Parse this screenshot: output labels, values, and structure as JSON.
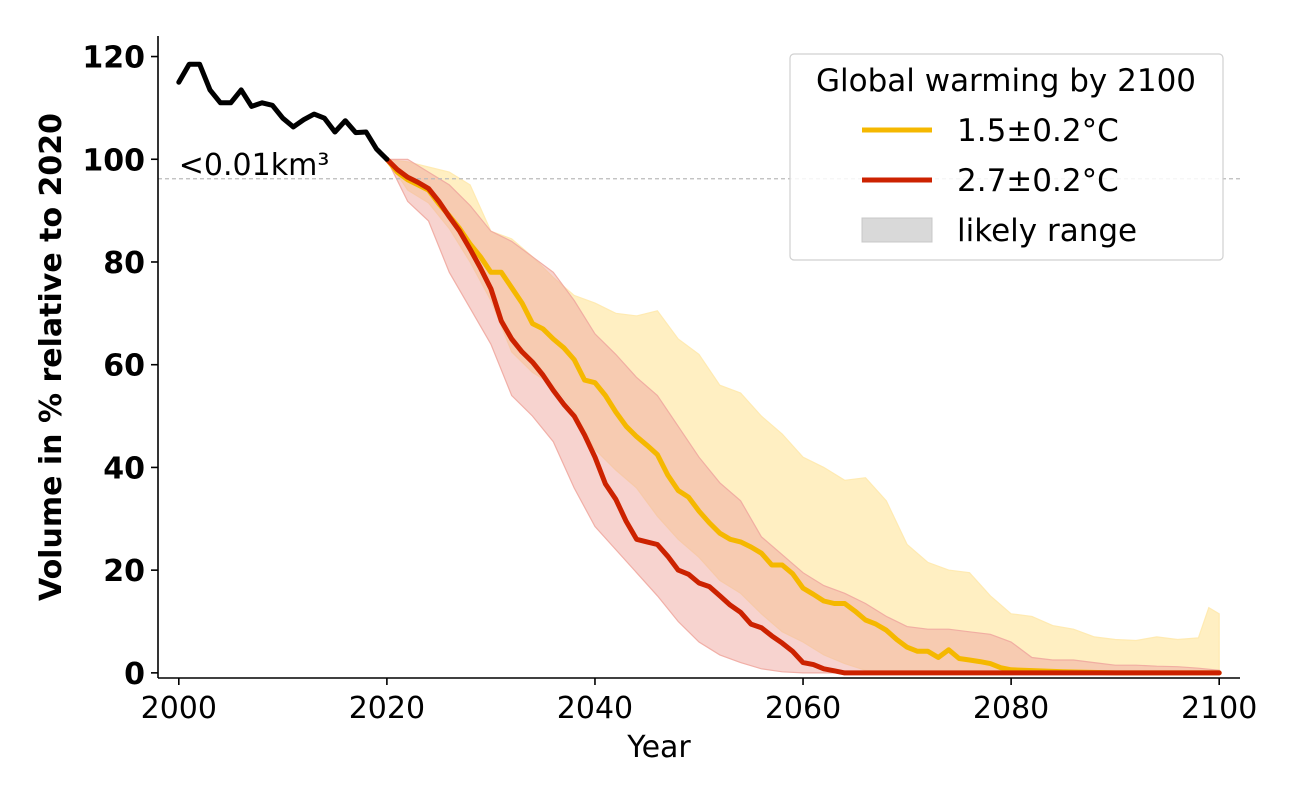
{
  "chart_data": {
    "type": "line",
    "xlabel": "Year",
    "ylabel": "Volume in % relative to 2020",
    "xlim": [
      1998,
      2102
    ],
    "ylim": [
      -1,
      124
    ],
    "x_ticks": [
      2000,
      2020,
      2040,
      2060,
      2080,
      2100
    ],
    "y_ticks": [
      0,
      20,
      40,
      60,
      80,
      100,
      120
    ],
    "grid": false,
    "legend": {
      "title": "Global warming by 2100",
      "placement": "top-right",
      "entries": [
        "1.5±0.2°C",
        "2.7±0.2°C",
        "likely range"
      ]
    },
    "reference_line": {
      "y": 96.2,
      "label": "<0.01km³",
      "style": "dashed",
      "color": "#bbbbbb"
    },
    "colors": {
      "historical": "#000000",
      "low": "#f5b800",
      "high": "#cc2200",
      "low_band": "#ffe9ad",
      "high_band": "#f0a8a0",
      "range_swatch": "#d9d9d9"
    },
    "series": [
      {
        "key": "historical",
        "x": [
          2000,
          2001,
          2002,
          2003,
          2004,
          2005,
          2006,
          2007,
          2008,
          2009,
          2010,
          2011,
          2012,
          2013,
          2014,
          2015,
          2016,
          2017,
          2018,
          2019,
          2020
        ],
        "values": [
          115,
          118.5,
          118.5,
          113.5,
          111,
          111,
          113.5,
          110.3,
          111,
          110.5,
          108,
          106.3,
          107.7,
          108.8,
          108,
          105.3,
          107.5,
          105.2,
          105.3,
          102,
          100
        ]
      },
      {
        "key": "low",
        "name": "1.5±0.2°C",
        "x": [
          2020,
          2021,
          2022,
          2023,
          2024,
          2025,
          2026,
          2027,
          2028,
          2029,
          2030,
          2031,
          2032,
          2033,
          2034,
          2035,
          2036,
          2037,
          2038,
          2039,
          2040,
          2041,
          2042,
          2043,
          2044,
          2045,
          2046,
          2047,
          2048,
          2049,
          2050,
          2051,
          2052,
          2053,
          2054,
          2055,
          2056,
          2057,
          2058,
          2059,
          2060,
          2061,
          2062,
          2063,
          2064,
          2065,
          2066,
          2067,
          2068,
          2069,
          2070,
          2071,
          2072,
          2073,
          2074,
          2075,
          2076,
          2077,
          2078,
          2079,
          2080,
          2085,
          2090,
          2095,
          2100
        ],
        "values": [
          100,
          97.5,
          96,
          95,
          94,
          91.3,
          89,
          86.5,
          83.5,
          81,
          78,
          78,
          75,
          72,
          68,
          67,
          65,
          63.3,
          61,
          57,
          56.5,
          54,
          50.8,
          48,
          46,
          44.3,
          42.5,
          38.5,
          35.5,
          34.2,
          31.5,
          29.2,
          27.2,
          26,
          25.5,
          24.5,
          23.3,
          21,
          21,
          19.3,
          16.5,
          15.3,
          14,
          13.5,
          13.5,
          12,
          10.3,
          9.5,
          8.3,
          6.5,
          5,
          4.2,
          4.2,
          3,
          4.5,
          2.8,
          2.5,
          2.2,
          1.8,
          1,
          0.6,
          0.2,
          0,
          0,
          0
        ]
      },
      {
        "key": "high",
        "name": "2.7±0.2°C",
        "x": [
          2020,
          2021,
          2022,
          2023,
          2024,
          2025,
          2026,
          2027,
          2028,
          2029,
          2030,
          2031,
          2032,
          2033,
          2034,
          2035,
          2036,
          2037,
          2038,
          2039,
          2040,
          2041,
          2042,
          2043,
          2044,
          2045,
          2046,
          2047,
          2048,
          2049,
          2050,
          2051,
          2052,
          2053,
          2054,
          2055,
          2056,
          2057,
          2058,
          2059,
          2060,
          2061,
          2062,
          2063,
          2064,
          2065,
          2070,
          2080,
          2090,
          2100
        ],
        "values": [
          100,
          98,
          96.5,
          95.5,
          94.3,
          91.8,
          88.8,
          86,
          82.5,
          78.8,
          74.8,
          68.5,
          65,
          62.5,
          60.5,
          58,
          55,
          52.3,
          50,
          46.3,
          42,
          36.8,
          33.8,
          29.5,
          26,
          25.5,
          25,
          22.7,
          20,
          19.2,
          17.5,
          16.8,
          15,
          13.2,
          11.8,
          9.5,
          8.8,
          7.2,
          5.8,
          4.2,
          2,
          1.6,
          0.8,
          0.4,
          0,
          0,
          0,
          0,
          0,
          0
        ]
      },
      {
        "key": "low_band",
        "x": [
          2020,
          2022,
          2024,
          2026,
          2028,
          2030,
          2032,
          2034,
          2036,
          2038,
          2040,
          2042,
          2044,
          2046,
          2048,
          2050,
          2052,
          2054,
          2056,
          2058,
          2060,
          2062,
          2064,
          2066,
          2068,
          2070,
          2072,
          2074,
          2076,
          2078,
          2080,
          2082,
          2084,
          2086,
          2088,
          2090,
          2092,
          2094,
          2096,
          2098,
          2099,
          2100
        ],
        "upper": [
          100,
          99.5,
          98.5,
          97.5,
          95,
          86,
          84.5,
          81,
          77,
          73.5,
          72,
          70,
          69.5,
          70.5,
          65,
          62,
          56,
          54.5,
          50,
          46.5,
          42,
          40,
          37.5,
          38,
          33.5,
          25,
          21.5,
          20,
          19.5,
          15,
          11.5,
          11,
          9.2,
          8.5,
          7,
          6.5,
          6.3,
          7,
          6.5,
          6.8,
          12.7,
          11.5
        ],
        "lower": [
          100,
          94,
          91.5,
          86.5,
          80,
          72.5,
          62.5,
          58.5,
          56,
          51,
          43.5,
          39.5,
          36,
          30.5,
          26,
          22.5,
          18,
          15.5,
          11.5,
          8,
          6,
          3.5,
          1.8,
          0.5,
          0,
          0,
          0,
          0,
          0,
          0,
          0,
          0,
          0,
          0,
          0,
          0,
          0,
          0,
          0,
          0,
          0,
          0
        ]
      },
      {
        "key": "high_band",
        "x": [
          2020,
          2022,
          2024,
          2026,
          2028,
          2030,
          2032,
          2034,
          2036,
          2038,
          2040,
          2042,
          2044,
          2046,
          2048,
          2050,
          2052,
          2054,
          2056,
          2058,
          2060,
          2062,
          2064,
          2066,
          2068,
          2070,
          2072,
          2074,
          2076,
          2078,
          2080,
          2082,
          2084,
          2086,
          2088,
          2090,
          2092,
          2094,
          2096,
          2098,
          2100
        ],
        "upper": [
          100,
          100,
          97.5,
          95,
          91,
          86,
          84,
          81,
          78,
          72.5,
          66,
          62,
          57.5,
          54,
          48,
          42,
          37,
          33.5,
          26.5,
          23,
          19.5,
          17,
          15.5,
          13.5,
          11,
          9,
          8.5,
          8.5,
          8,
          7.5,
          6,
          3,
          2.5,
          2.5,
          2,
          1.5,
          1.5,
          1.3,
          1.2,
          0.9,
          0.5
        ],
        "lower": [
          100,
          91.8,
          88,
          78,
          71,
          64,
          54,
          50,
          45,
          36,
          28.5,
          24,
          19.5,
          15,
          10,
          6,
          3.5,
          2,
          0.8,
          0.2,
          0,
          0,
          0,
          0,
          0,
          0,
          0,
          0,
          0,
          0,
          0,
          0,
          0,
          0,
          0,
          0,
          0,
          0,
          0,
          0,
          0
        ]
      }
    ]
  }
}
